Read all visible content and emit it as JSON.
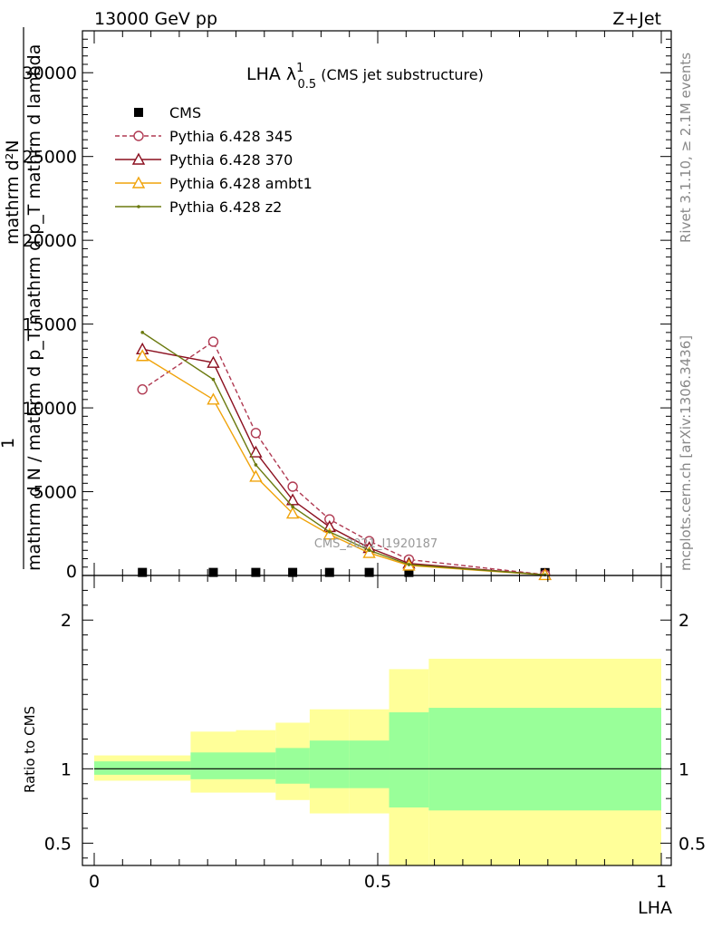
{
  "header": {
    "left": "13000 GeV pp",
    "right": "Z+Jet"
  },
  "plot_title": {
    "main": "LHA λ",
    "sup": "1",
    "sub": "0.5",
    "suffix": " (CMS jet substructure)"
  },
  "watermark": "CMS_2021_I1920187",
  "side_texts": {
    "rivet": "Rivet 3.1.10, ≥ 2.1M events",
    "mcplots": "mcplots.cern.ch [arXiv:1306.3436]"
  },
  "ylabel_main": {
    "numerator": "1",
    "line1": "mathrm d N / mathrm d p",
    "line2": "mathrm d",
    "sub_T": "T",
    "rest": "mathrm d lambda",
    "top": "mathrm d²N",
    "full_top": "mathrm d²N",
    "full_bottom": "mathrm d N / mathrm d p_T mathrm d p_T mathrm d lambda"
  },
  "ylabel_ratio": "Ratio to CMS",
  "xlabel": "LHA",
  "legend": [
    {
      "name": "CMS",
      "color": "#000000",
      "marker": "square",
      "dash": false
    },
    {
      "name": "Pythia 6.428 345",
      "color": "#b03a52",
      "marker": "circle",
      "dash": true
    },
    {
      "name": "Pythia 6.428 370",
      "color": "#8b0f1f",
      "marker": "triangle",
      "dash": false
    },
    {
      "name": "Pythia 6.428 ambt1",
      "color": "#f0a30a",
      "marker": "triangle",
      "dash": false
    },
    {
      "name": "Pythia 6.428 z2",
      "color": "#6b7a0f",
      "marker": "dot",
      "dash": false
    }
  ],
  "chart_data": [
    {
      "type": "line",
      "xlim": [
        0,
        1
      ],
      "ylim": [
        0,
        32500
      ],
      "yticks": [
        5000,
        10000,
        15000,
        20000,
        25000,
        30000
      ],
      "ytick_labels": [
        "5000",
        "10000",
        "15000",
        "20000",
        "25000",
        "30000"
      ],
      "x": [
        0.085,
        0.21,
        0.285,
        0.35,
        0.415,
        0.485,
        0.555,
        0.795
      ],
      "series": [
        {
          "name": "CMS",
          "values": [
            20,
            20,
            20,
            20,
            20,
            20,
            20,
            10
          ]
        },
        {
          "name": "Pythia 6.428 345",
          "values": [
            11100,
            13950,
            8500,
            5300,
            3350,
            2050,
            950,
            50
          ]
        },
        {
          "name": "Pythia 6.428 370",
          "values": [
            13500,
            12700,
            7350,
            4500,
            2900,
            1650,
            720,
            40
          ]
        },
        {
          "name": "Pythia 6.428 ambt1",
          "values": [
            13100,
            10500,
            5900,
            3700,
            2450,
            1350,
            600,
            30
          ]
        },
        {
          "name": "Pythia 6.428 z2",
          "values": [
            14500,
            11700,
            6600,
            4100,
            2600,
            1500,
            650,
            35
          ]
        }
      ]
    },
    {
      "type": "area",
      "xlim": [
        0,
        1
      ],
      "ylim": [
        0.35,
        2.3
      ],
      "yticks": [
        0.5,
        1,
        2
      ],
      "ytick_labels": [
        "0.5",
        "1",
        "2"
      ],
      "xticks": [
        0,
        0.5,
        1
      ],
      "xtick_labels": [
        "0",
        "0.5",
        "1"
      ],
      "bins": [
        {
          "x0": 0.0,
          "x1": 0.17,
          "y_outer": [
            0.92,
            1.09
          ],
          "y_inner": [
            0.96,
            1.05
          ]
        },
        {
          "x0": 0.17,
          "x1": 0.25,
          "y_outer": [
            0.84,
            1.25
          ],
          "y_inner": [
            0.93,
            1.11
          ]
        },
        {
          "x0": 0.25,
          "x1": 0.32,
          "y_outer": [
            0.84,
            1.26
          ],
          "y_inner": [
            0.93,
            1.11
          ]
        },
        {
          "x0": 0.32,
          "x1": 0.38,
          "y_outer": [
            0.79,
            1.31
          ],
          "y_inner": [
            0.9,
            1.14
          ]
        },
        {
          "x0": 0.38,
          "x1": 0.45,
          "y_outer": [
            0.7,
            1.4
          ],
          "y_inner": [
            0.87,
            1.19
          ]
        },
        {
          "x0": 0.45,
          "x1": 0.52,
          "y_outer": [
            0.7,
            1.4
          ],
          "y_inner": [
            0.87,
            1.19
          ]
        },
        {
          "x0": 0.52,
          "x1": 0.59,
          "y_outer": [
            0.35,
            1.67
          ],
          "y_inner": [
            0.74,
            1.38
          ]
        },
        {
          "x0": 0.59,
          "x1": 1.0,
          "y_outer": [
            0.35,
            1.74
          ],
          "y_inner": [
            0.72,
            1.41
          ]
        }
      ],
      "reference": 1
    }
  ]
}
